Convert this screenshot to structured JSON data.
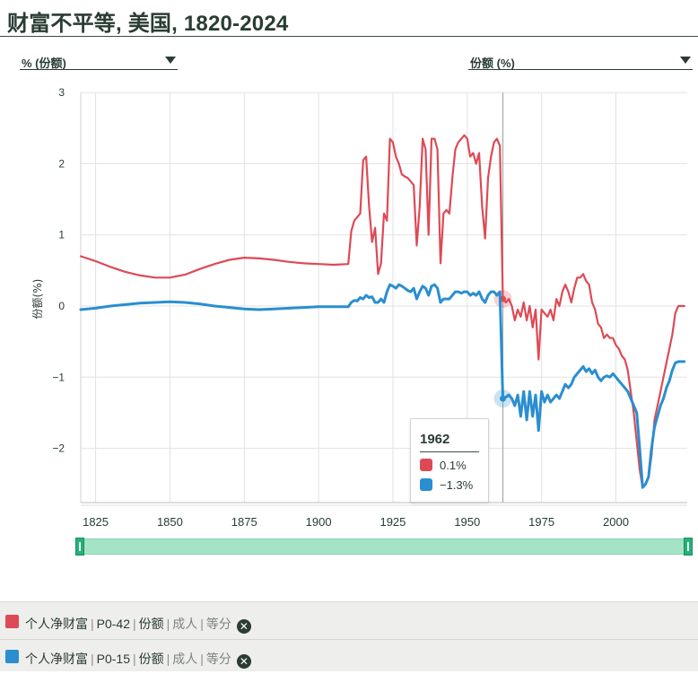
{
  "page": {
    "title": "财富不平等, 美国, 1820-2024"
  },
  "controls": {
    "left_dropdown": "% (份额)",
    "right_dropdown": "份额 (%)"
  },
  "colors": {
    "red": "#dd4a55",
    "blue": "#2a8ed0",
    "grid": "#e2e2e2",
    "slider": "#a4e4c6"
  },
  "legend": [
    {
      "color": "#dd4a55",
      "name": "个人净财富",
      "code": "P0-42",
      "measure": "份额",
      "pop": "成人",
      "split": "等分"
    },
    {
      "color": "#2a8ed0",
      "name": "个人净财富",
      "code": "P0-15",
      "measure": "份额",
      "pop": "成人",
      "split": "等分"
    }
  ],
  "tooltip": {
    "year": "1962",
    "red_value": "0.1%",
    "blue_value": "−1.3%"
  },
  "chart_data": {
    "type": "line",
    "ylabel": "份额(%)",
    "xlim": [
      1820,
      2024
    ],
    "ylim": [
      -2.8,
      3
    ],
    "yticks": [
      "3",
      "2",
      "1",
      "0",
      "−1",
      "−2"
    ],
    "ytick_values": [
      3,
      2,
      1,
      0,
      -1,
      -2
    ],
    "xticks": [
      "1825",
      "1850",
      "1875",
      "1900",
      "1925",
      "1950",
      "1975",
      "2000"
    ],
    "xtick_values": [
      1825,
      1850,
      1875,
      1900,
      1925,
      1950,
      1975,
      2000
    ],
    "grid": true,
    "hover_x": 1962,
    "series": [
      {
        "name": "个人净财富 | P0-42",
        "color": "#dd4a55",
        "points": [
          [
            1820,
            0.7
          ],
          [
            1825,
            0.63
          ],
          [
            1830,
            0.55
          ],
          [
            1835,
            0.48
          ],
          [
            1840,
            0.43
          ],
          [
            1845,
            0.4
          ],
          [
            1850,
            0.4
          ],
          [
            1855,
            0.44
          ],
          [
            1860,
            0.52
          ],
          [
            1865,
            0.59
          ],
          [
            1870,
            0.65
          ],
          [
            1875,
            0.68
          ],
          [
            1880,
            0.67
          ],
          [
            1885,
            0.65
          ],
          [
            1890,
            0.62
          ],
          [
            1895,
            0.6
          ],
          [
            1900,
            0.59
          ],
          [
            1905,
            0.58
          ],
          [
            1910,
            0.59
          ],
          [
            1911,
            1.05
          ],
          [
            1912,
            1.2
          ],
          [
            1913,
            1.25
          ],
          [
            1914,
            1.3
          ],
          [
            1915,
            2.05
          ],
          [
            1916,
            2.1
          ],
          [
            1917,
            1.4
          ],
          [
            1918,
            0.9
          ],
          [
            1919,
            1.1
          ],
          [
            1920,
            0.45
          ],
          [
            1921,
            0.6
          ],
          [
            1922,
            1.3
          ],
          [
            1923,
            1.2
          ],
          [
            1924,
            2.35
          ],
          [
            1925,
            2.3
          ],
          [
            1926,
            2.1
          ],
          [
            1927,
            2.0
          ],
          [
            1928,
            1.85
          ],
          [
            1929,
            1.82
          ],
          [
            1930,
            1.8
          ],
          [
            1931,
            1.75
          ],
          [
            1932,
            1.7
          ],
          [
            1933,
            0.85
          ],
          [
            1934,
            1.4
          ],
          [
            1935,
            2.35
          ],
          [
            1936,
            2.2
          ],
          [
            1937,
            1.0
          ],
          [
            1938,
            2.35
          ],
          [
            1939,
            2.35
          ],
          [
            1940,
            2.2
          ],
          [
            1941,
            0.6
          ],
          [
            1942,
            1.3
          ],
          [
            1943,
            1.35
          ],
          [
            1944,
            1.3
          ],
          [
            1945,
            1.8
          ],
          [
            1946,
            2.2
          ],
          [
            1947,
            2.3
          ],
          [
            1948,
            2.35
          ],
          [
            1949,
            2.4
          ],
          [
            1950,
            2.35
          ],
          [
            1951,
            2.1
          ],
          [
            1952,
            2.15
          ],
          [
            1953,
            2.0
          ],
          [
            1954,
            2.15
          ],
          [
            1955,
            1.4
          ],
          [
            1956,
            0.95
          ],
          [
            1957,
            1.8
          ],
          [
            1958,
            2.1
          ],
          [
            1959,
            2.3
          ],
          [
            1960,
            2.35
          ],
          [
            1961,
            2.25
          ],
          [
            1962,
            0.1
          ],
          [
            1963,
            0.05
          ],
          [
            1964,
            0.1
          ],
          [
            1965,
            0.0
          ],
          [
            1966,
            -0.2
          ],
          [
            1967,
            -0.05
          ],
          [
            1968,
            -0.15
          ],
          [
            1969,
            0.05
          ],
          [
            1970,
            -0.2
          ],
          [
            1971,
            0.0
          ],
          [
            1972,
            -0.3
          ],
          [
            1973,
            -0.05
          ],
          [
            1974,
            -0.75
          ],
          [
            1975,
            -0.05
          ],
          [
            1976,
            -0.1
          ],
          [
            1977,
            -0.15
          ],
          [
            1978,
            -0.05
          ],
          [
            1979,
            -0.2
          ],
          [
            1980,
            0.1
          ],
          [
            1981,
            0.0
          ],
          [
            1982,
            0.2
          ],
          [
            1983,
            0.3
          ],
          [
            1984,
            0.2
          ],
          [
            1985,
            0.05
          ],
          [
            1986,
            0.25
          ],
          [
            1987,
            0.4
          ],
          [
            1988,
            0.4
          ],
          [
            1989,
            0.45
          ],
          [
            1990,
            0.35
          ],
          [
            1991,
            0.3
          ],
          [
            1992,
            0.05
          ],
          [
            1993,
            -0.05
          ],
          [
            1994,
            -0.25
          ],
          [
            1995,
            -0.3
          ],
          [
            1996,
            -0.45
          ],
          [
            1997,
            -0.4
          ],
          [
            1998,
            -0.45
          ],
          [
            1999,
            -0.45
          ],
          [
            2000,
            -0.55
          ],
          [
            2001,
            -0.6
          ],
          [
            2002,
            -0.7
          ],
          [
            2003,
            -0.75
          ],
          [
            2004,
            -0.9
          ],
          [
            2005,
            -1.2
          ],
          [
            2006,
            -1.5
          ],
          [
            2007,
            -1.9
          ],
          [
            2008,
            -2.3
          ],
          [
            2009,
            -2.55
          ],
          [
            2010,
            -2.5
          ],
          [
            2011,
            -2.4
          ],
          [
            2012,
            -2.1
          ],
          [
            2013,
            -1.6
          ],
          [
            2014,
            -1.4
          ],
          [
            2015,
            -1.2
          ],
          [
            2016,
            -1.0
          ],
          [
            2017,
            -0.8
          ],
          [
            2018,
            -0.6
          ],
          [
            2019,
            -0.4
          ],
          [
            2020,
            -0.1
          ],
          [
            2021,
            0.0
          ],
          [
            2022,
            0.0
          ],
          [
            2023,
            0.0
          ]
        ]
      },
      {
        "name": "个人净财富 | P0-15",
        "color": "#2a8ed0",
        "points": [
          [
            1820,
            -0.05
          ],
          [
            1825,
            -0.03
          ],
          [
            1830,
            0.0
          ],
          [
            1835,
            0.02
          ],
          [
            1840,
            0.04
          ],
          [
            1845,
            0.05
          ],
          [
            1850,
            0.06
          ],
          [
            1855,
            0.05
          ],
          [
            1860,
            0.03
          ],
          [
            1865,
            0.0
          ],
          [
            1870,
            -0.02
          ],
          [
            1875,
            -0.04
          ],
          [
            1880,
            -0.05
          ],
          [
            1885,
            -0.04
          ],
          [
            1890,
            -0.03
          ],
          [
            1895,
            -0.02
          ],
          [
            1900,
            -0.01
          ],
          [
            1905,
            -0.01
          ],
          [
            1910,
            -0.01
          ],
          [
            1911,
            0.05
          ],
          [
            1912,
            0.08
          ],
          [
            1913,
            0.07
          ],
          [
            1914,
            0.12
          ],
          [
            1915,
            0.1
          ],
          [
            1916,
            0.15
          ],
          [
            1917,
            0.12
          ],
          [
            1918,
            0.13
          ],
          [
            1919,
            0.05
          ],
          [
            1920,
            0.05
          ],
          [
            1921,
            0.1
          ],
          [
            1922,
            0.05
          ],
          [
            1923,
            0.2
          ],
          [
            1924,
            0.3
          ],
          [
            1925,
            0.28
          ],
          [
            1926,
            0.25
          ],
          [
            1927,
            0.3
          ],
          [
            1928,
            0.28
          ],
          [
            1929,
            0.25
          ],
          [
            1930,
            0.22
          ],
          [
            1931,
            0.2
          ],
          [
            1932,
            0.25
          ],
          [
            1933,
            0.1
          ],
          [
            1934,
            0.2
          ],
          [
            1935,
            0.28
          ],
          [
            1936,
            0.25
          ],
          [
            1937,
            0.15
          ],
          [
            1938,
            0.28
          ],
          [
            1939,
            0.3
          ],
          [
            1940,
            0.25
          ],
          [
            1941,
            0.05
          ],
          [
            1942,
            0.1
          ],
          [
            1943,
            0.1
          ],
          [
            1944,
            0.1
          ],
          [
            1945,
            0.15
          ],
          [
            1946,
            0.2
          ],
          [
            1947,
            0.2
          ],
          [
            1948,
            0.18
          ],
          [
            1949,
            0.2
          ],
          [
            1950,
            0.2
          ],
          [
            1951,
            0.15
          ],
          [
            1952,
            0.18
          ],
          [
            1953,
            0.15
          ],
          [
            1954,
            0.2
          ],
          [
            1955,
            0.1
          ],
          [
            1956,
            0.05
          ],
          [
            1957,
            0.15
          ],
          [
            1958,
            0.2
          ],
          [
            1959,
            0.2
          ],
          [
            1960,
            0.15
          ],
          [
            1961,
            0.2
          ],
          [
            1962,
            -1.3
          ],
          [
            1963,
            -1.28
          ],
          [
            1964,
            -1.25
          ],
          [
            1965,
            -1.3
          ],
          [
            1966,
            -1.4
          ],
          [
            1967,
            -1.25
          ],
          [
            1968,
            -1.55
          ],
          [
            1969,
            -1.2
          ],
          [
            1970,
            -1.6
          ],
          [
            1971,
            -1.2
          ],
          [
            1972,
            -1.55
          ],
          [
            1973,
            -1.25
          ],
          [
            1974,
            -1.75
          ],
          [
            1975,
            -1.2
          ],
          [
            1976,
            -1.35
          ],
          [
            1977,
            -1.25
          ],
          [
            1978,
            -1.35
          ],
          [
            1979,
            -1.3
          ],
          [
            1980,
            -1.25
          ],
          [
            1981,
            -1.3
          ],
          [
            1982,
            -1.2
          ],
          [
            1983,
            -1.1
          ],
          [
            1984,
            -1.15
          ],
          [
            1985,
            -1.1
          ],
          [
            1986,
            -1.0
          ],
          [
            1987,
            -0.95
          ],
          [
            1988,
            -0.9
          ],
          [
            1989,
            -0.85
          ],
          [
            1990,
            -0.92
          ],
          [
            1991,
            -0.88
          ],
          [
            1992,
            -0.95
          ],
          [
            1993,
            -0.9
          ],
          [
            1994,
            -1.0
          ],
          [
            1995,
            -1.05
          ],
          [
            1996,
            -1.0
          ],
          [
            1997,
            -0.98
          ],
          [
            1998,
            -1.0
          ],
          [
            1999,
            -0.95
          ],
          [
            2000,
            -1.0
          ],
          [
            2001,
            -1.05
          ],
          [
            2002,
            -1.1
          ],
          [
            2003,
            -1.15
          ],
          [
            2004,
            -1.2
          ],
          [
            2005,
            -1.3
          ],
          [
            2006,
            -1.4
          ],
          [
            2007,
            -1.5
          ],
          [
            2008,
            -2.0
          ],
          [
            2009,
            -2.55
          ],
          [
            2010,
            -2.5
          ],
          [
            2011,
            -2.4
          ],
          [
            2012,
            -2.0
          ],
          [
            2013,
            -1.7
          ],
          [
            2014,
            -1.55
          ],
          [
            2015,
            -1.4
          ],
          [
            2016,
            -1.3
          ],
          [
            2017,
            -1.15
          ],
          [
            2018,
            -1.05
          ],
          [
            2019,
            -0.9
          ],
          [
            2020,
            -0.8
          ],
          [
            2021,
            -0.78
          ],
          [
            2022,
            -0.78
          ],
          [
            2023,
            -0.78
          ]
        ]
      }
    ]
  }
}
